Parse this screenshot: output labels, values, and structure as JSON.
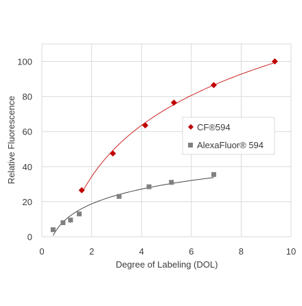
{
  "chart_data": {
    "type": "scatter",
    "xlabel": "Degree of Labeling (DOL)",
    "ylabel": "Relative Fluorescence",
    "xlim": [
      0,
      10
    ],
    "ylim": [
      0,
      110
    ],
    "x_ticks": [
      0,
      2,
      4,
      6,
      8,
      10
    ],
    "y_ticks": [
      0,
      20,
      40,
      60,
      80,
      100
    ],
    "grid": true,
    "legend_position": "right-center",
    "series": [
      {
        "name": "CF®594",
        "color": "#c00000",
        "marker": "diamond",
        "points": [
          {
            "x": 1.6,
            "y": 26.5
          },
          {
            "x": 2.85,
            "y": 47.5
          },
          {
            "x": 4.15,
            "y": 63.5
          },
          {
            "x": 5.3,
            "y": 76.5
          },
          {
            "x": 6.9,
            "y": 86.5
          },
          {
            "x": 9.35,
            "y": 100
          }
        ],
        "trend": "logarithmic"
      },
      {
        "name": "AlexaFluor® 594",
        "color": "#808080",
        "marker": "square",
        "points": [
          {
            "x": 0.45,
            "y": 4
          },
          {
            "x": 0.85,
            "y": 8
          },
          {
            "x": 1.15,
            "y": 9.5
          },
          {
            "x": 1.5,
            "y": 13
          },
          {
            "x": 3.1,
            "y": 23
          },
          {
            "x": 4.3,
            "y": 28.5
          },
          {
            "x": 5.2,
            "y": 31
          },
          {
            "x": 6.9,
            "y": 35.5
          }
        ],
        "trend": "logarithmic"
      }
    ]
  }
}
